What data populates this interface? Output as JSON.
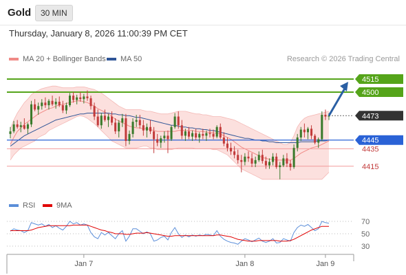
{
  "header": {
    "title": "Gold",
    "timeframe": "30 MIN"
  },
  "datetime": "Thursday, January 8, 2026 11:00:39 PM CET",
  "legend": {
    "bollinger": {
      "label": "MA 20 + Bollinger Bands",
      "color": "#f08a86"
    },
    "ma50": {
      "label": "MA 50",
      "color": "#2f5597"
    },
    "rsi": {
      "label": "RSI",
      "color": "#5b8ed9"
    },
    "ma9": {
      "label": "9MA",
      "color": "#e00000"
    }
  },
  "copyright": "Research © 2026 Trading Central",
  "colors": {
    "up": "#3a7a2c",
    "down": "#c23b3b",
    "resistance": "#55a41a",
    "support_major": "#2a62d6",
    "support_minor": "#f29a9a",
    "current": "#333333",
    "arrow": "#2a5fa4",
    "band_fill": "#fbd5d3"
  },
  "chart_data": [
    {
      "type": "candlestick",
      "title": "Gold 30 MIN",
      "x_tick_labels": [
        "Jan 7",
        "Jan 8",
        "Jan 9"
      ],
      "ylim": [
        4388,
        4530
      ],
      "levels": [
        {
          "value": 4515,
          "label": "4515",
          "kind": "resistance"
        },
        {
          "value": 4500,
          "label": "4500",
          "kind": "resistance"
        },
        {
          "value": 4473,
          "label": "4473",
          "kind": "current"
        },
        {
          "value": 4445,
          "label": "4445",
          "kind": "pivot"
        },
        {
          "value": 4435,
          "label": "4435",
          "kind": "support"
        },
        {
          "value": 4415,
          "label": "4415",
          "kind": "support"
        }
      ],
      "forecast_target": 4515,
      "ohlc": [
        [
          4452,
          4460,
          4447,
          4455
        ],
        [
          4455,
          4467,
          4453,
          4463
        ],
        [
          4463,
          4468,
          4458,
          4460
        ],
        [
          4460,
          4466,
          4454,
          4462
        ],
        [
          4462,
          4470,
          4457,
          4458
        ],
        [
          4458,
          4465,
          4452,
          4463
        ],
        [
          4463,
          4490,
          4460,
          4486
        ],
        [
          4486,
          4492,
          4478,
          4480
        ],
        [
          4480,
          4488,
          4474,
          4484
        ],
        [
          4484,
          4492,
          4480,
          4488
        ],
        [
          4488,
          4494,
          4482,
          4485
        ],
        [
          4485,
          4492,
          4480,
          4490
        ],
        [
          4490,
          4496,
          4484,
          4486
        ],
        [
          4486,
          4493,
          4481,
          4489
        ],
        [
          4489,
          4495,
          4483,
          4485
        ],
        [
          4485,
          4490,
          4476,
          4479
        ],
        [
          4479,
          4488,
          4475,
          4485
        ],
        [
          4485,
          4499,
          4483,
          4496
        ],
        [
          4496,
          4500,
          4488,
          4491
        ],
        [
          4491,
          4497,
          4486,
          4494
        ],
        [
          4494,
          4500,
          4489,
          4492
        ],
        [
          4492,
          4498,
          4487,
          4495
        ],
        [
          4495,
          4502,
          4490,
          4493
        ],
        [
          4493,
          4496,
          4480,
          4484
        ],
        [
          4484,
          4488,
          4468,
          4472
        ],
        [
          4472,
          4480,
          4460,
          4462
        ],
        [
          4462,
          4476,
          4458,
          4473
        ],
        [
          4473,
          4480,
          4466,
          4468
        ],
        [
          4468,
          4475,
          4460,
          4472
        ],
        [
          4472,
          4478,
          4462,
          4465
        ],
        [
          4465,
          4470,
          4452,
          4455
        ],
        [
          4455,
          4468,
          4448,
          4465
        ],
        [
          4465,
          4475,
          4460,
          4470
        ],
        [
          4470,
          4475,
          4438,
          4444
        ],
        [
          4444,
          4456,
          4440,
          4452
        ],
        [
          4452,
          4470,
          4448,
          4466
        ],
        [
          4466,
          4474,
          4460,
          4468
        ],
        [
          4468,
          4474,
          4458,
          4462
        ],
        [
          4462,
          4468,
          4450,
          4456
        ],
        [
          4456,
          4464,
          4448,
          4460
        ],
        [
          4460,
          4468,
          4452,
          4455
        ],
        [
          4455,
          4460,
          4430,
          4446
        ],
        [
          4446,
          4452,
          4438,
          4442
        ],
        [
          4442,
          4450,
          4436,
          4447
        ],
        [
          4447,
          4455,
          4442,
          4450
        ],
        [
          4450,
          4456,
          4430,
          4446
        ],
        [
          4446,
          4462,
          4444,
          4460
        ],
        [
          4460,
          4476,
          4458,
          4472
        ],
        [
          4472,
          4478,
          4458,
          4462
        ],
        [
          4462,
          4468,
          4446,
          4450
        ],
        [
          4450,
          4458,
          4444,
          4455
        ],
        [
          4455,
          4460,
          4446,
          4449
        ],
        [
          4449,
          4456,
          4444,
          4453
        ],
        [
          4453,
          4458,
          4445,
          4448
        ],
        [
          4448,
          4454,
          4442,
          4452
        ],
        [
          4452,
          4458,
          4446,
          4450
        ],
        [
          4450,
          4456,
          4444,
          4453
        ],
        [
          4453,
          4458,
          4448,
          4452
        ],
        [
          4452,
          4457,
          4446,
          4449
        ],
        [
          4449,
          4462,
          4447,
          4460
        ],
        [
          4460,
          4464,
          4446,
          4448
        ],
        [
          4448,
          4454,
          4438,
          4441
        ],
        [
          4441,
          4448,
          4432,
          4436
        ],
        [
          4436,
          4442,
          4428,
          4432
        ],
        [
          4432,
          4438,
          4424,
          4428
        ],
        [
          4428,
          4434,
          4418,
          4422
        ],
        [
          4422,
          4428,
          4408,
          4420
        ],
        [
          4420,
          4430,
          4416,
          4426
        ],
        [
          4426,
          4432,
          4420,
          4424
        ],
        [
          4424,
          4430,
          4414,
          4418
        ],
        [
          4418,
          4426,
          4414,
          4422
        ],
        [
          4422,
          4432,
          4420,
          4428
        ],
        [
          4428,
          4434,
          4418,
          4421
        ],
        [
          4421,
          4426,
          4412,
          4416
        ],
        [
          4416,
          4424,
          4412,
          4420
        ],
        [
          4420,
          4430,
          4416,
          4426
        ],
        [
          4426,
          4430,
          4412,
          4414
        ],
        [
          4414,
          4420,
          4400,
          4416
        ],
        [
          4416,
          4428,
          4414,
          4424
        ],
        [
          4424,
          4430,
          4414,
          4418
        ],
        [
          4418,
          4422,
          4410,
          4414
        ],
        [
          4414,
          4440,
          4412,
          4436
        ],
        [
          4436,
          4452,
          4432,
          4448
        ],
        [
          4448,
          4460,
          4444,
          4457
        ],
        [
          4457,
          4464,
          4448,
          4454
        ],
        [
          4454,
          4460,
          4446,
          4458
        ],
        [
          4458,
          4462,
          4446,
          4450
        ],
        [
          4450,
          4452,
          4440,
          4442
        ],
        [
          4442,
          4448,
          4436,
          4446
        ],
        [
          4446,
          4478,
          4444,
          4474
        ],
        [
          4474,
          4480,
          4468,
          4472
        ],
        [
          4472,
          4476,
          4468,
          4473
        ]
      ],
      "ma20": [
        4440,
        4448,
        4455,
        4459,
        4463,
        4466,
        4469,
        4472,
        4475,
        4477,
        4479,
        4481,
        4482,
        4484,
        4485,
        4486,
        4487,
        4488,
        4489,
        4490,
        4490,
        4489,
        4488,
        4486,
        4484,
        4481,
        4479,
        4477,
        4475,
        4472,
        4469,
        4467,
        4465,
        4463,
        4461,
        4460,
        4459,
        4459,
        4458,
        4458,
        4457,
        4456,
        4455,
        4455,
        4455,
        4455,
        4455,
        4455,
        4456,
        4456,
        4456,
        4456,
        4456,
        4455,
        4455,
        4455,
        4454,
        4454,
        4453,
        4453,
        4452,
        4450,
        4448,
        4446,
        4443,
        4440,
        4437,
        4435,
        4433,
        4431,
        4429,
        4427,
        4425,
        4424,
        4423,
        4423,
        4422,
        4422,
        4422,
        4422,
        4422,
        4424,
        4427,
        4430,
        4432,
        4434,
        4436,
        4437,
        4438,
        4440,
        4442,
        4444
      ],
      "band_upper": [
        4458,
        4468,
        4476,
        4482,
        4488,
        4492,
        4497,
        4500,
        4502,
        4504,
        4505,
        4506,
        4507,
        4507,
        4506,
        4505,
        4505,
        4505,
        4505,
        4506,
        4506,
        4506,
        4505,
        4504,
        4503,
        4501,
        4499,
        4496,
        4493,
        4490,
        4487,
        4484,
        4482,
        4480,
        4480,
        4480,
        4480,
        4480,
        4479,
        4478,
        4478,
        4477,
        4476,
        4475,
        4475,
        4475,
        4476,
        4477,
        4478,
        4478,
        4478,
        4477,
        4476,
        4475,
        4475,
        4474,
        4474,
        4473,
        4472,
        4472,
        4472,
        4471,
        4470,
        4469,
        4468,
        4466,
        4464,
        4462,
        4460,
        4458,
        4456,
        4454,
        4452,
        4450,
        4448,
        4446,
        4444,
        4442,
        4440,
        4440,
        4442,
        4450,
        4460,
        4466,
        4470,
        4472,
        4473,
        4474,
        4475,
        4476,
        4477,
        4478
      ],
      "band_lower": [
        4422,
        4428,
        4432,
        4436,
        4438,
        4440,
        4442,
        4444,
        4448,
        4450,
        4452,
        4456,
        4458,
        4460,
        4462,
        4464,
        4466,
        4468,
        4470,
        4472,
        4473,
        4472,
        4470,
        4467,
        4464,
        4460,
        4456,
        4452,
        4448,
        4444,
        4442,
        4440,
        4438,
        4436,
        4436,
        4436,
        4436,
        4437,
        4438,
        4438,
        4436,
        4436,
        4434,
        4434,
        4434,
        4434,
        4434,
        4435,
        4436,
        4436,
        4436,
        4436,
        4436,
        4435,
        4435,
        4435,
        4435,
        4435,
        4434,
        4434,
        4432,
        4430,
        4428,
        4424,
        4420,
        4416,
        4412,
        4410,
        4408,
        4406,
        4404,
        4402,
        4400,
        4400,
        4400,
        4400,
        4400,
        4400,
        4400,
        4400,
        4400,
        4400,
        4400,
        4400,
        4400,
        4400,
        4400,
        4400,
        4400,
        4400,
        4404,
        4408
      ],
      "ma50": [
        4438,
        4441,
        4444,
        4447,
        4450,
        4452,
        4454,
        4456,
        4458,
        4460,
        4462,
        4464,
        4466,
        4468,
        4469,
        4470,
        4471,
        4472,
        4473,
        4474,
        4475,
        4475,
        4476,
        4476,
        4476,
        4476,
        4476,
        4476,
        4476,
        4475,
        4475,
        4474,
        4474,
        4473,
        4473,
        4472,
        4471,
        4471,
        4470,
        4469,
        4468,
        4467,
        4466,
        4465,
        4464,
        4463,
        4462,
        4462,
        4461,
        4460,
        4460,
        4459,
        4459,
        4458,
        4458,
        4457,
        4457,
        4456,
        4456,
        4455,
        4454,
        4453,
        4452,
        4451,
        4450,
        4449,
        4448,
        4447,
        4447,
        4446,
        4445,
        4445,
        4444,
        4444,
        4443,
        4443,
        4442,
        4442,
        4442,
        4442,
        4442,
        4442,
        4442,
        4443,
        4443,
        4443,
        4443,
        4443,
        4444,
        4444,
        4444,
        4445
      ]
    },
    {
      "type": "line",
      "title": "RSI / 9MA",
      "ylim": [
        20,
        80
      ],
      "y_ticks": [
        30,
        50,
        70
      ],
      "series": [
        {
          "name": "RSI",
          "values": [
            54,
            58,
            56,
            55,
            52,
            55,
            68,
            66,
            64,
            66,
            62,
            65,
            60,
            63,
            59,
            56,
            62,
            70,
            66,
            68,
            64,
            66,
            64,
            52,
            45,
            42,
            52,
            48,
            52,
            47,
            42,
            50,
            55,
            38,
            46,
            58,
            58,
            54,
            50,
            53,
            50,
            38,
            40,
            44,
            46,
            40,
            52,
            60,
            50,
            44,
            48,
            45,
            48,
            46,
            48,
            47,
            49,
            48,
            47,
            55,
            46,
            41,
            38,
            36,
            35,
            33,
            38,
            42,
            40,
            37,
            40,
            43,
            38,
            36,
            38,
            42,
            35,
            36,
            42,
            40,
            38,
            52,
            60,
            64,
            62,
            65,
            60,
            55,
            58,
            70,
            68,
            67
          ]
        },
        {
          "name": "9MA",
          "values": [
            55,
            55,
            55,
            55,
            55,
            55,
            56,
            58,
            60,
            61,
            62,
            63,
            63,
            63,
            63,
            63,
            63,
            63,
            64,
            64,
            64,
            64,
            64,
            62,
            60,
            58,
            56,
            55,
            53,
            52,
            50,
            50,
            50,
            49,
            49,
            50,
            51,
            51,
            51,
            52,
            51,
            50,
            49,
            48,
            47,
            46,
            46,
            47,
            47,
            47,
            47,
            47,
            47,
            47,
            47,
            47,
            47,
            47,
            47,
            48,
            48,
            47,
            46,
            45,
            43,
            41,
            40,
            39,
            38,
            38,
            38,
            39,
            39,
            39,
            39,
            39,
            39,
            38,
            38,
            38,
            39,
            41,
            44,
            47,
            50,
            53,
            56,
            58,
            60,
            62,
            62,
            62
          ]
        }
      ]
    }
  ]
}
